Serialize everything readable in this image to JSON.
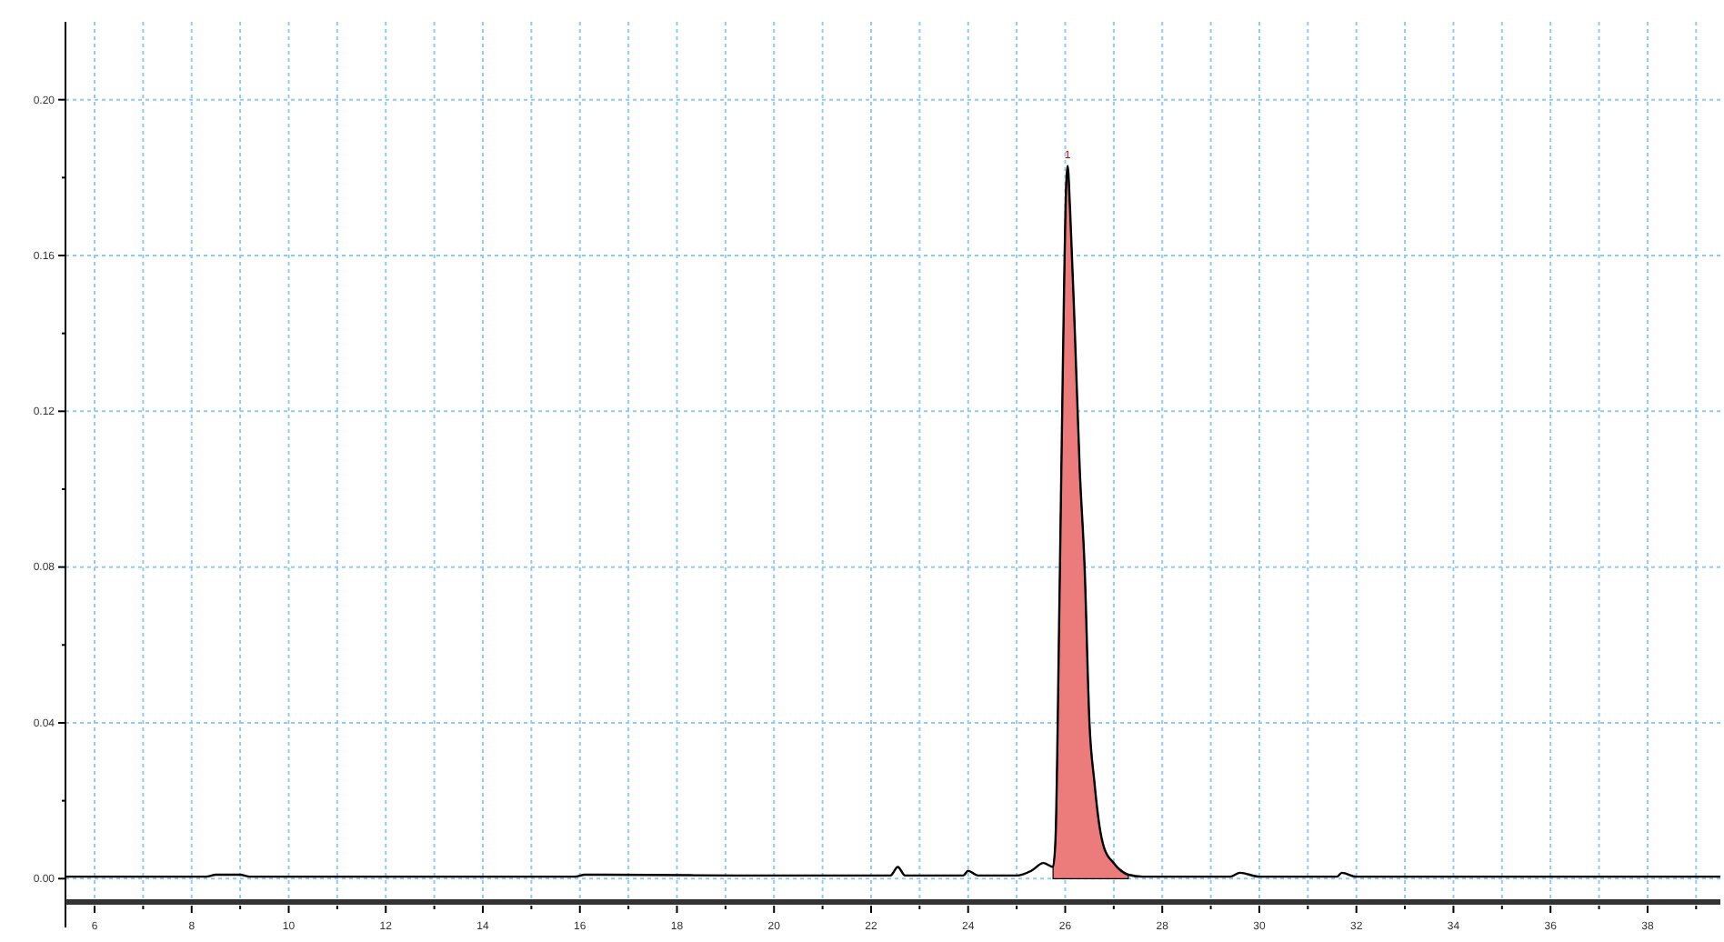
{
  "chart_data": {
    "type": "line",
    "xlim": [
      5.4,
      39.5
    ],
    "ylim": [
      -0.006,
      0.22
    ],
    "xticks": [
      {
        "value": 6,
        "label": "6"
      },
      {
        "value": 7,
        "label": null
      },
      {
        "value": 8,
        "label": "8"
      },
      {
        "value": 9,
        "label": null
      },
      {
        "value": 10,
        "label": "10"
      },
      {
        "value": 11,
        "label": null
      },
      {
        "value": 12,
        "label": "12"
      },
      {
        "value": 13,
        "label": null
      },
      {
        "value": 14,
        "label": "14"
      },
      {
        "value": 15,
        "label": null
      },
      {
        "value": 16,
        "label": "16"
      },
      {
        "value": 17,
        "label": null
      },
      {
        "value": 18,
        "label": "18"
      },
      {
        "value": 19,
        "label": null
      },
      {
        "value": 20,
        "label": "20"
      },
      {
        "value": 21,
        "label": null
      },
      {
        "value": 22,
        "label": "22"
      },
      {
        "value": 23,
        "label": null
      },
      {
        "value": 24,
        "label": "24"
      },
      {
        "value": 25,
        "label": null
      },
      {
        "value": 26,
        "label": "26"
      },
      {
        "value": 27,
        "label": null
      },
      {
        "value": 28,
        "label": "28"
      },
      {
        "value": 29,
        "label": null
      },
      {
        "value": 30,
        "label": "30"
      },
      {
        "value": 31,
        "label": null
      },
      {
        "value": 32,
        "label": "32"
      },
      {
        "value": 33,
        "label": null
      },
      {
        "value": 34,
        "label": "34"
      },
      {
        "value": 35,
        "label": null
      },
      {
        "value": 36,
        "label": "36"
      },
      {
        "value": 37,
        "label": null
      },
      {
        "value": 38,
        "label": "38"
      },
      {
        "value": 39,
        "label": null
      }
    ],
    "yticks": [
      {
        "value": 0,
        "label": "0.00"
      },
      {
        "value": 0.02,
        "label": null
      },
      {
        "value": 0.04,
        "label": "0.04"
      },
      {
        "value": 0.06,
        "label": null
      },
      {
        "value": 0.08,
        "label": "0.08"
      },
      {
        "value": 0.1,
        "label": null
      },
      {
        "value": 0.12,
        "label": "0.12"
      },
      {
        "value": 0.14,
        "label": null
      },
      {
        "value": 0.16,
        "label": "0.16"
      },
      {
        "value": 0.18,
        "label": null
      },
      {
        "value": 0.2,
        "label": "0.20"
      }
    ],
    "grid": true,
    "marker": "none",
    "line_style": "solid",
    "annotations": [
      "1"
    ],
    "series": [
      {
        "type": "area",
        "color": "#ec7b7b",
        "x": [
          25.75,
          25.8,
          25.88,
          25.95,
          26.02,
          26.05,
          26.1,
          26.2,
          26.3,
          26.4,
          26.5,
          26.6,
          26.7,
          26.8,
          27.0,
          27.3
        ],
        "values": [
          0.003,
          0.01,
          0.07,
          0.13,
          0.178,
          0.183,
          0.172,
          0.14,
          0.105,
          0.08,
          0.04,
          0.025,
          0.014,
          0.008,
          0.004,
          0.001
        ]
      },
      {
        "color": "#000000",
        "x": [
          5.4,
          8.3,
          8.5,
          9.0,
          9.2,
          12.8,
          15.9,
          16.1,
          16.5,
          19.5,
          22.4,
          22.55,
          22.7,
          23.9,
          24.0,
          24.2,
          25.0,
          25.3,
          25.55,
          25.75,
          25.8,
          25.88,
          25.95,
          26.02,
          26.05,
          26.1,
          26.2,
          26.3,
          26.4,
          26.5,
          26.6,
          26.7,
          26.8,
          27.0,
          27.3,
          27.6,
          29.4,
          29.6,
          30.0,
          31.6,
          31.7,
          32.0,
          38.2,
          39.5
        ],
        "values": [
          0.0005,
          0.0005,
          0.001,
          0.001,
          0.0005,
          0.0005,
          0.0005,
          0.001,
          0.001,
          0.0008,
          0.0008,
          0.003,
          0.0008,
          0.0008,
          0.002,
          0.0008,
          0.0008,
          0.002,
          0.004,
          0.003,
          0.01,
          0.07,
          0.13,
          0.178,
          0.183,
          0.172,
          0.14,
          0.105,
          0.08,
          0.04,
          0.025,
          0.014,
          0.008,
          0.004,
          0.001,
          0.0005,
          0.0005,
          0.0015,
          0.0005,
          0.0005,
          0.0015,
          0.0005,
          0.0005,
          0.0005
        ]
      }
    ]
  }
}
